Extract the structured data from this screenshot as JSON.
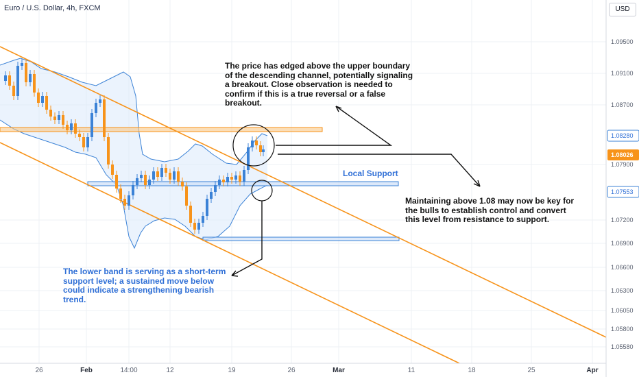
{
  "header": {
    "title": "Euro / U.S. Dollar, 4h, FXCM",
    "currency": "USD"
  },
  "chart_data": {
    "type": "candlestick",
    "symbol": "Euro / U.S. Dollar, 4h, FXCM",
    "y_axis_ticks": [
      "1.09500",
      "1.09100",
      "1.08700",
      "1.07900",
      "1.07200",
      "1.06900",
      "1.06600",
      "1.06300",
      "1.06050",
      "1.05800",
      "1.05580"
    ],
    "x_axis_ticks": [
      "26",
      "Feb",
      "14:00",
      "12",
      "19",
      "26",
      "Mar",
      "11",
      "18",
      "25",
      "Apr"
    ],
    "price_labels": [
      {
        "value": "1.08280",
        "style": "blue-outline"
      },
      {
        "value": "1.08026",
        "style": "orange-fill"
      },
      {
        "value": "1.07553",
        "style": "blue-outline"
      }
    ],
    "ylim": [
      1.0545,
      1.0985
    ],
    "channel": {
      "color": "#f7931a",
      "upper_line": [
        [
          1.094,
          1.058
        ]
      ],
      "lower_line": [
        [
          1.0855,
          1.0525
        ]
      ]
    },
    "bollinger_bands": {
      "color": "#3b82d6"
    },
    "zones": [
      {
        "name": "resistance-zone",
        "color": "#f7931a"
      },
      {
        "name": "local-support-zone",
        "color": "#3b82d6",
        "label": "Local Support"
      },
      {
        "name": "lower-support-zone",
        "color": "#3b82d6"
      }
    ],
    "candles_up_color": "#3b82d6",
    "candles_down_color": "#f7931a"
  },
  "annotations": {
    "top_right": "The price has edged above the upper boundary of the descending channel, potentially signaling a breakout. Close observation is needed to confirm if this is a true reversal or a false breakout.",
    "middle_right": "Maintaining above 1.08 may now be key for the bulls to establish control and convert this level from resistance to support.",
    "bottom_left": "The lower band is serving as a short-term support level; a sustained move below could indicate a strengthening bearish trend.",
    "local_support_label": "Local Support"
  }
}
